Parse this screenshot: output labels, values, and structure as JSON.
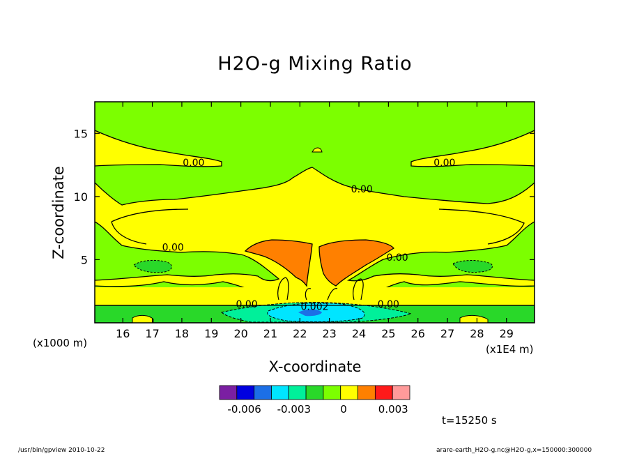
{
  "chart_data": {
    "type": "heatmap",
    "title": "H2O-g Mixing Ratio",
    "xlabel": "X-coordinate",
    "ylabel": "Z-coordinate",
    "x_unit_label": "(x1E4 m)",
    "y_unit_label": "(x1000 m)",
    "x_ticks": [
      "16",
      "17",
      "18",
      "19",
      "20",
      "21",
      "22",
      "23",
      "24",
      "25",
      "26",
      "27",
      "28",
      "29"
    ],
    "x_tick_values": [
      16,
      17,
      18,
      19,
      20,
      21,
      22,
      23,
      24,
      25,
      26,
      27,
      28,
      29
    ],
    "y_ticks": [
      "5",
      "10",
      "15"
    ],
    "y_tick_values": [
      5,
      10,
      15
    ],
    "xlim": [
      15.05,
      29.95
    ],
    "ylim": [
      0.0,
      17.5
    ],
    "contour_labels": [
      {
        "text": "0.00",
        "x": 18.4,
        "y": 12.7
      },
      {
        "text": "0.00",
        "x": 26.9,
        "y": 12.7
      },
      {
        "text": "0.00",
        "x": 24.1,
        "y": 10.6
      },
      {
        "text": "0.00",
        "x": 17.7,
        "y": 6.0
      },
      {
        "text": "0.00",
        "x": 25.3,
        "y": 5.2
      },
      {
        "text": "0.00",
        "x": 20.2,
        "y": 1.5
      },
      {
        "text": "0.002",
        "x": 22.5,
        "y": 1.3
      },
      {
        "text": "0.00",
        "x": 25.0,
        "y": 1.5
      }
    ],
    "colorbar": {
      "colors": [
        "#7b1fa2",
        "#0000e0",
        "#1c6fe6",
        "#00e5ff",
        "#00f09a",
        "#29d829",
        "#7cff00",
        "#ffff00",
        "#ff8000",
        "#ff1a1a",
        "#ff9a9a"
      ],
      "tick_labels": [
        "-0.006",
        "-0.003",
        "0",
        "0.003"
      ],
      "tick_values": [
        -0.006,
        -0.003,
        0.0,
        0.003
      ],
      "range": [
        -0.0075,
        0.004
      ]
    },
    "colors": {
      "background_level": "#7cff00",
      "positive_level": "#ffff00",
      "max_level": "#ff8000",
      "low_level": "#29d829",
      "min_level": "#00e5ff"
    }
  },
  "time_label": "t=15250 s",
  "footer_left": "/usr/bin/gpview   2010-10-22",
  "footer_right": "arare-earth_H2O-g.nc@H2O-g,x=150000:300000"
}
